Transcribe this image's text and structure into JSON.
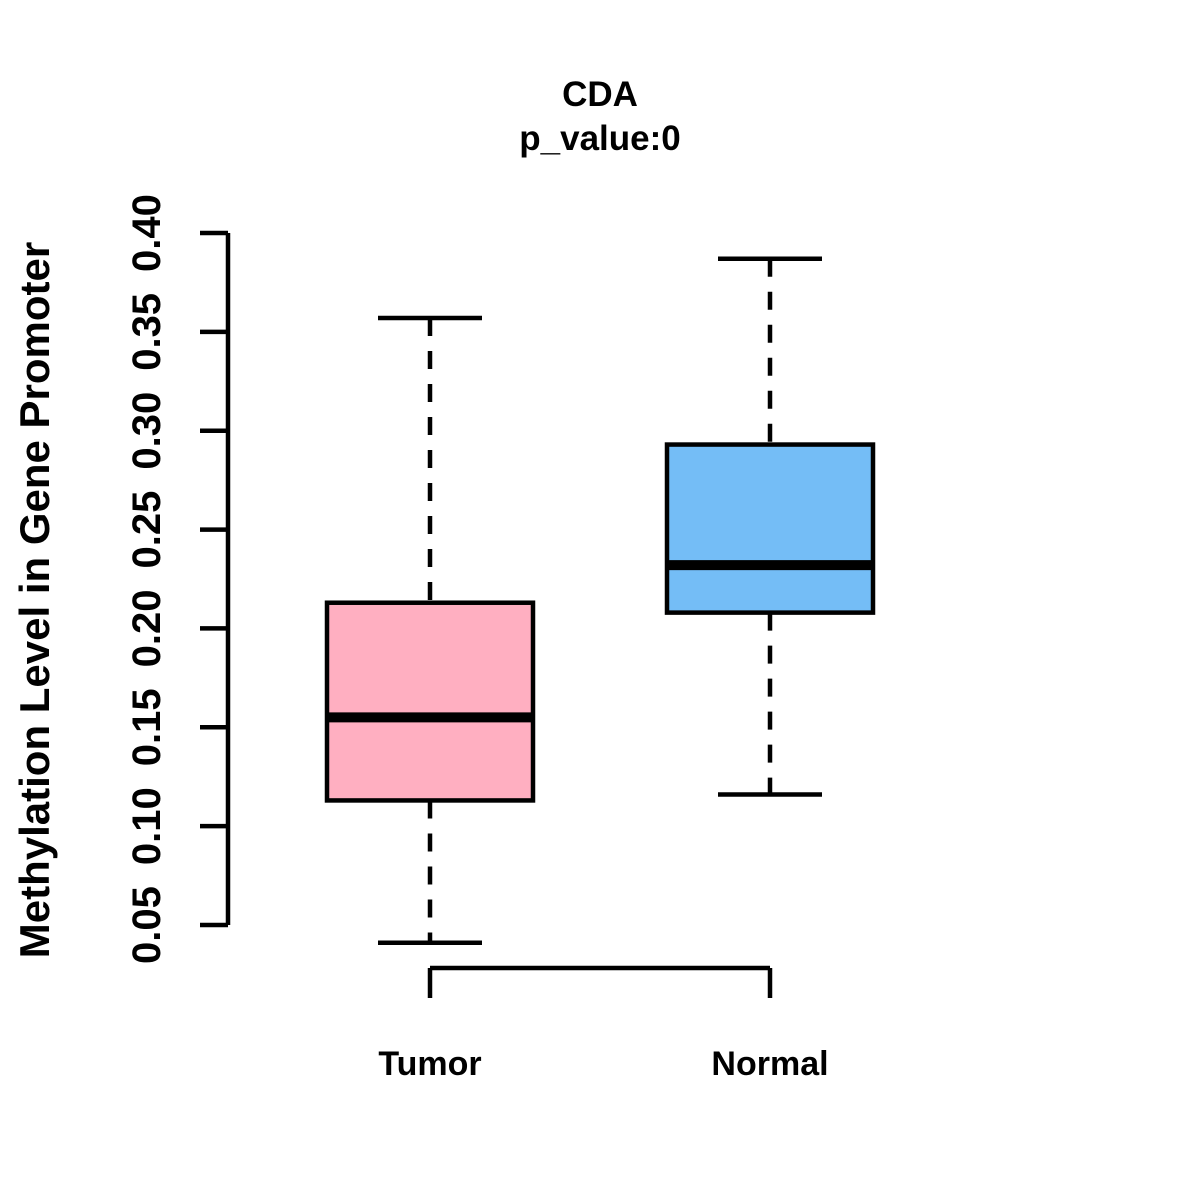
{
  "chart_data": {
    "type": "boxplot",
    "title": "CDA",
    "subtitle": "p_value:0",
    "ylabel": "Methylation Level in Gene Promoter",
    "xlabel": "",
    "categories": [
      "Tumor",
      "Normal"
    ],
    "ylim": [
      0.05,
      0.4
    ],
    "y_ticks": [
      0.05,
      0.1,
      0.15,
      0.2,
      0.25,
      0.3,
      0.35,
      0.4
    ],
    "y_tick_labels": [
      "0.05",
      "0.10",
      "0.15",
      "0.20",
      "0.25",
      "0.30",
      "0.35",
      "0.40"
    ],
    "grid": false,
    "legend": "none",
    "orientation": "vertical",
    "series": [
      {
        "name": "Tumor",
        "lower_whisker": 0.041,
        "q1": 0.113,
        "median": 0.155,
        "q3": 0.213,
        "upper_whisker": 0.357,
        "fill": "#FFAFC1"
      },
      {
        "name": "Normal",
        "lower_whisker": 0.116,
        "q1": 0.208,
        "median": 0.232,
        "q3": 0.293,
        "upper_whisker": 0.387,
        "fill": "#74BDF6"
      }
    ],
    "stroke_color": "#000000",
    "background_color": "#FFFFFF"
  }
}
